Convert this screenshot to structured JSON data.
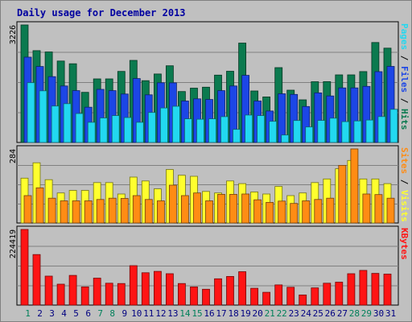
{
  "chart_data": {
    "type": "bar",
    "title": "Daily usage for December 2013",
    "days": [
      "1",
      "2",
      "3",
      "4",
      "5",
      "6",
      "7",
      "8",
      "9",
      "10",
      "11",
      "12",
      "13",
      "14",
      "15",
      "16",
      "17",
      "18",
      "19",
      "20",
      "21",
      "22",
      "23",
      "24",
      "25",
      "26",
      "27",
      "28",
      "29",
      "30",
      "31"
    ],
    "weekend_days": [
      "1",
      "7",
      "8",
      "14",
      "15",
      "21",
      "22",
      "28",
      "29"
    ],
    "colors": {
      "hits": "#0b7a4f",
      "files": "#1c46e6",
      "pages": "#22d8f0",
      "visits": "#ffff2e",
      "sites": "#ff8c14",
      "kbytes": "#ff1414",
      "title": "#0000a0",
      "weekday": "#000080",
      "weekend": "#00805a",
      "background": "#c0c0c0",
      "plot": "#c0c0c0"
    },
    "panels": [
      {
        "id": "top",
        "ymax": 3226,
        "ymax_label": "3226",
        "side_labels": [
          {
            "text": "Pages",
            "color": "#22d8f0"
          },
          {
            "text": " / ",
            "color": "#000000"
          },
          {
            "text": "Files",
            "color": "#1c46e6"
          },
          {
            "text": " / ",
            "color": "#000000"
          },
          {
            "text": "Hits",
            "color": "#0b7a4f"
          }
        ],
        "series": [
          {
            "name": "Hits",
            "color": "#0b7a4f",
            "values": [
              3226,
              2521,
              2485,
              2235,
              2161,
              1377,
              1745,
              1745,
              1950,
              2254,
              1696,
              1880,
              2106,
              1398,
              1491,
              1517,
              1850,
              1955,
              2728,
              1414,
              1250,
              2055,
              1436,
              1172,
              1669,
              1670,
              1855,
              1855,
              1946,
              2745,
              2590
            ]
          },
          {
            "name": "Files",
            "color": "#1c46e6",
            "values": [
              2342,
              2086,
              1808,
              1552,
              1424,
              967,
              1458,
              1424,
              1331,
              1754,
              1307,
              1639,
              1637,
              1137,
              1197,
              1179,
              1424,
              1552,
              1842,
              1137,
              863,
              1337,
              1320,
              987,
              1361,
              1278,
              1497,
              1497,
              1540,
              1945,
              2088
            ]
          },
          {
            "name": "Pages",
            "color": "#22d8f0",
            "values": [
              1641,
              1418,
              1002,
              1064,
              795,
              554,
              674,
              737,
              684,
              554,
              825,
              947,
              995,
              649,
              638,
              649,
              710,
              361,
              753,
              737,
              582,
              205,
              603,
              426,
              606,
              667,
              572,
              592,
              616,
              712,
              910
            ]
          }
        ]
      },
      {
        "id": "middle",
        "ymax": 284,
        "ymax_label": "284",
        "side_labels": [
          {
            "text": "Sites",
            "color": "#ff8c14"
          },
          {
            "text": " / ",
            "color": "#000000"
          },
          {
            "text": "Visits",
            "color": "#ffff2e"
          }
        ],
        "series": [
          {
            "name": "Visits",
            "color": "#ffff2e",
            "values": [
              172,
              231,
              166,
              115,
              125,
              125,
              155,
              155,
              111,
              176,
              161,
              131,
              205,
              183,
              179,
              121,
              115,
              161,
              151,
              119,
              111,
              140,
              105,
              115,
              155,
              169,
              208,
              240,
              169,
              169,
              151
            ]
          },
          {
            "name": "Sites",
            "color": "#ff8c14",
            "values": [
              105,
              135,
              95,
              85,
              85,
              85,
              90,
              95,
              94,
              105,
              90,
              85,
              145,
              105,
              115,
              85,
              110,
              110,
              111,
              89,
              79,
              84,
              75,
              85,
              90,
              95,
              221,
              284,
              111,
              109,
              95
            ]
          }
        ]
      },
      {
        "id": "bottom",
        "ymax": 224419,
        "ymax_label": "224419",
        "side_labels": [
          {
            "text": "KBytes",
            "color": "#ff1414"
          }
        ],
        "series": [
          {
            "name": "KBytes",
            "color": "#ff1414",
            "values": [
              224419,
              150000,
              86000,
              62000,
              88000,
              54000,
              80000,
              65000,
              64000,
              117000,
              96000,
              100000,
              93000,
              64000,
              54000,
              47000,
              78000,
              85000,
              99000,
              50000,
              38000,
              60000,
              53000,
              30000,
              51000,
              65000,
              68000,
              93000,
              103000,
              94000,
              92000
            ]
          }
        ]
      }
    ]
  }
}
